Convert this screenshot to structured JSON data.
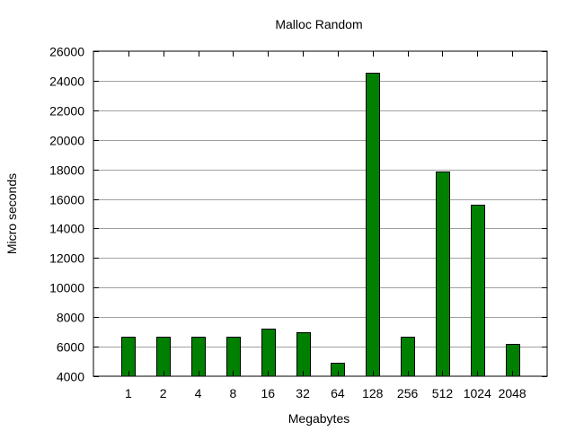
{
  "chart_data": {
    "type": "bar",
    "title": "Malloc Random",
    "xlabel": "Megabytes",
    "ylabel": "Micro seconds",
    "categories": [
      "1",
      "2",
      "4",
      "8",
      "16",
      "32",
      "64",
      "128",
      "256",
      "512",
      "1024",
      "2048"
    ],
    "values": [
      6650,
      6700,
      6700,
      6650,
      7200,
      7000,
      4900,
      24550,
      6650,
      17850,
      15600,
      6180
    ],
    "ylim": [
      4000,
      26000
    ],
    "yticks": [
      4000,
      6000,
      8000,
      10000,
      12000,
      14000,
      16000,
      18000,
      20000,
      22000,
      24000,
      26000
    ],
    "grid": true,
    "bar_color": "#008000",
    "legend": "none"
  }
}
